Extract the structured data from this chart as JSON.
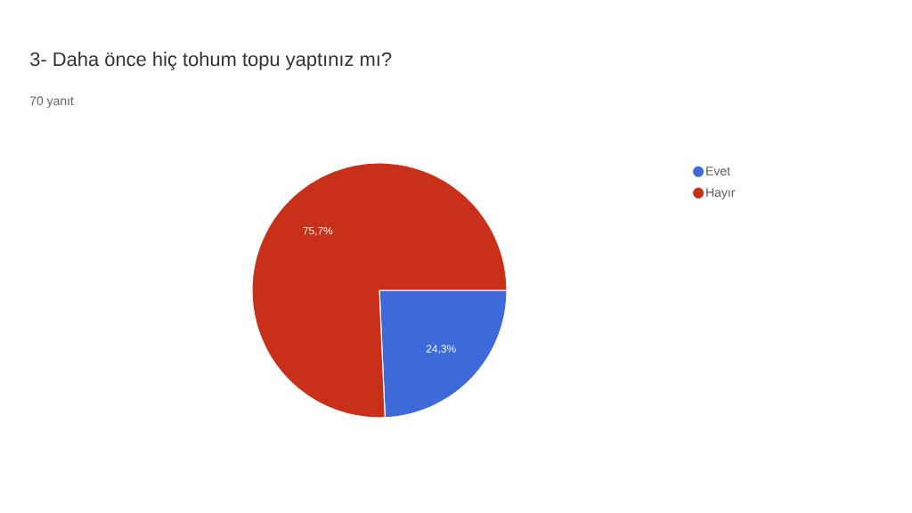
{
  "chart_data": {
    "type": "pie",
    "title": "3- Daha önce hiç tohum topu yaptınız mı?",
    "subtitle": "70 yanıt",
    "categories": [
      "Evet",
      "Hayır"
    ],
    "values": [
      24.3,
      75.7
    ],
    "colors": [
      "#3d6ad8",
      "#c8301a"
    ],
    "value_labels": [
      "24,3%",
      "75,7%"
    ],
    "legend": "top right"
  }
}
